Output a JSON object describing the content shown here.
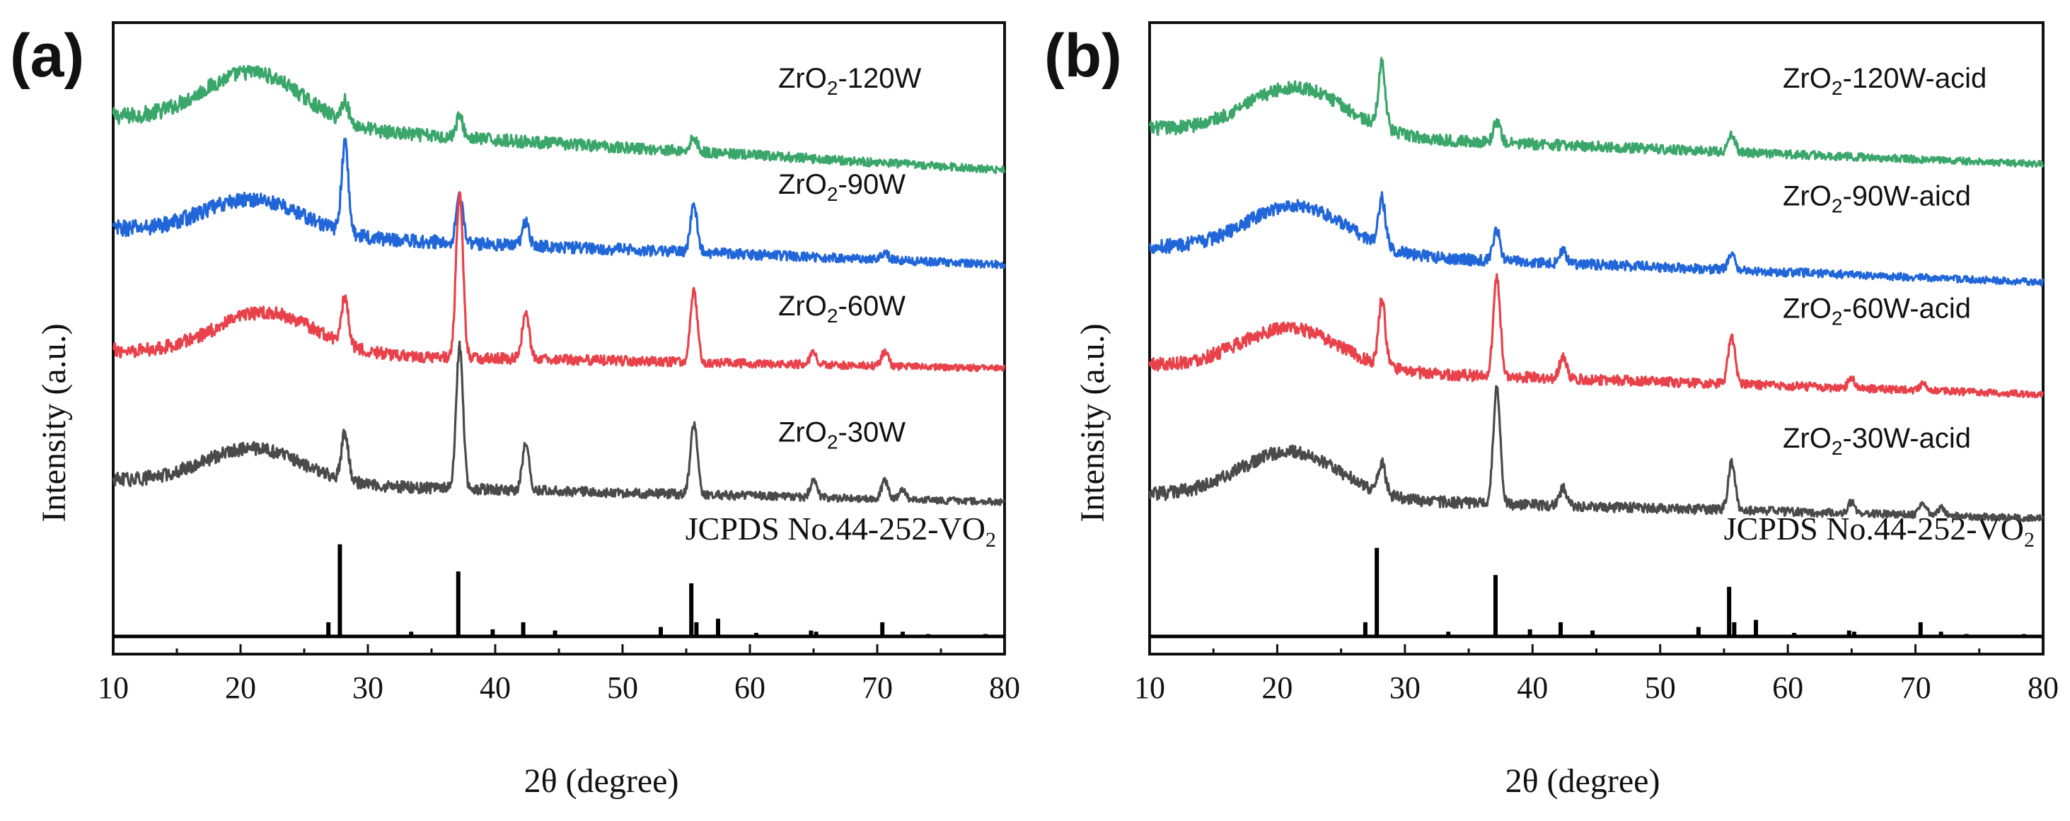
{
  "chart_data": [
    {
      "type": "line",
      "panel": "(a)",
      "xlabel": "2θ (degree)",
      "ylabel": "Intensity (a.u.)",
      "xlim": [
        10,
        80
      ],
      "xticks": [
        10,
        20,
        30,
        40,
        50,
        60,
        70,
        80
      ],
      "grid": false,
      "series": [
        {
          "name": "ZrO2-120W",
          "label_main": "ZrO",
          "label_sub": "2",
          "label_tail": "-120W",
          "color": "#3aa66a",
          "baseline": 2.3,
          "slope": -0.45,
          "hump_height": 0.45,
          "hump_center": 21,
          "noise": 0.07,
          "peaks": [
            [
              28.2,
              0.18
            ],
            [
              37.2,
              0.18
            ],
            [
              55.6,
              0.12
            ]
          ]
        },
        {
          "name": "ZrO2-90W",
          "label_main": "ZrO",
          "label_sub": "2",
          "label_tail": "-90W",
          "color": "#2166d9",
          "baseline": 1.35,
          "slope": -0.3,
          "hump_height": 0.3,
          "hump_center": 21,
          "noise": 0.07,
          "peaks": [
            [
              28.2,
              0.75
            ],
            [
              37.2,
              0.4
            ],
            [
              42.4,
              0.2
            ],
            [
              55.6,
              0.4
            ],
            [
              70.6,
              0.06
            ]
          ]
        },
        {
          "name": "ZrO2-60W",
          "label_main": "ZrO",
          "label_sub": "2",
          "label_tail": "-60W",
          "color": "#e8414a",
          "baseline": 0.32,
          "slope": -0.15,
          "hump_height": 0.35,
          "hump_center": 22,
          "noise": 0.06,
          "peaks": [
            [
              28.2,
              0.4
            ],
            [
              37.2,
              1.4
            ],
            [
              42.4,
              0.4
            ],
            [
              55.6,
              0.6
            ],
            [
              65.0,
              0.1
            ],
            [
              70.6,
              0.12
            ]
          ]
        },
        {
          "name": "ZrO2-30W",
          "label_main": "ZrO",
          "label_sub": "2",
          "label_tail": "-30W",
          "color": "#4a4a4a",
          "baseline": -0.78,
          "slope": -0.18,
          "hump_height": 0.3,
          "hump_center": 21,
          "noise": 0.06,
          "peaks": [
            [
              28.2,
              0.4
            ],
            [
              37.2,
              1.2
            ],
            [
              42.4,
              0.4
            ],
            [
              55.6,
              0.6
            ],
            [
              65.0,
              0.13
            ],
            [
              70.6,
              0.15
            ],
            [
              72.0,
              0.07
            ]
          ]
        }
      ],
      "reference": {
        "name": "JCPDS No.44-252-VO2",
        "label_main": "JCPDS No.44-252-VO",
        "label_sub": "2",
        "color": "#000000",
        "baseline": -2.1,
        "lines": [
          [
            26.9,
            0.12
          ],
          [
            27.8,
            0.78
          ],
          [
            33.4,
            0.04
          ],
          [
            37.1,
            0.55
          ],
          [
            39.8,
            0.06
          ],
          [
            42.2,
            0.12
          ],
          [
            44.7,
            0.05
          ],
          [
            53.0,
            0.08
          ],
          [
            55.4,
            0.45
          ],
          [
            55.8,
            0.12
          ],
          [
            57.5,
            0.15
          ],
          [
            60.5,
            0.03
          ],
          [
            64.8,
            0.05
          ],
          [
            65.2,
            0.04
          ],
          [
            70.4,
            0.12
          ],
          [
            72.0,
            0.04
          ],
          [
            74.0,
            0.02
          ],
          [
            78.5,
            0.02
          ]
        ]
      }
    },
    {
      "type": "line",
      "panel": "(b)",
      "xlabel": "2θ (degree)",
      "ylabel": "Intensity (a.u.)",
      "xlim": [
        10,
        80
      ],
      "xticks": [
        10,
        20,
        30,
        40,
        50,
        60,
        70,
        80
      ],
      "grid": false,
      "series": [
        {
          "name": "ZrO2-120W-acid",
          "label_main": "ZrO",
          "label_sub": "2",
          "label_tail": "-120W-acid",
          "color": "#3aa66a",
          "baseline": 2.2,
          "slope": -0.3,
          "hump_height": 0.4,
          "hump_center": 21.5,
          "noise": 0.06,
          "peaks": [
            [
              28.2,
              0.55
            ],
            [
              37.2,
              0.18
            ],
            [
              55.6,
              0.14
            ]
          ]
        },
        {
          "name": "ZrO2-90W-aicd",
          "label_main": "ZrO",
          "label_sub": "2",
          "label_tail": "-90W-aicd",
          "color": "#2166d9",
          "baseline": 1.2,
          "slope": -0.3,
          "hump_height": 0.4,
          "hump_center": 21.5,
          "noise": 0.06,
          "peaks": [
            [
              28.2,
              0.4
            ],
            [
              37.2,
              0.25
            ],
            [
              42.4,
              0.1
            ],
            [
              55.6,
              0.14
            ]
          ]
        },
        {
          "name": "ZrO2-60W-acid",
          "label_main": "ZrO",
          "label_sub": "2",
          "label_tail": "-60W-acid",
          "color": "#e8414a",
          "baseline": 0.2,
          "slope": -0.25,
          "hump_height": 0.35,
          "hump_center": 21,
          "noise": 0.06,
          "peaks": [
            [
              28.2,
              0.55
            ],
            [
              37.2,
              0.85
            ],
            [
              42.4,
              0.2
            ],
            [
              55.6,
              0.4
            ],
            [
              65.0,
              0.08
            ],
            [
              70.6,
              0.06
            ]
          ]
        },
        {
          "name": "ZrO2-30W-acid",
          "label_main": "ZrO",
          "label_sub": "2",
          "label_tail": "-30W-acid",
          "color": "#4a4a4a",
          "baseline": -0.9,
          "slope": -0.2,
          "hump_height": 0.4,
          "hump_center": 21,
          "noise": 0.06,
          "peaks": [
            [
              28.2,
              0.25
            ],
            [
              37.2,
              1.0
            ],
            [
              42.4,
              0.15
            ],
            [
              55.6,
              0.4
            ],
            [
              65.0,
              0.1
            ],
            [
              70.6,
              0.1
            ],
            [
              72.0,
              0.07
            ]
          ]
        }
      ],
      "reference": {
        "name": "JCPDS No.44-252-VO2",
        "label_main": "JCPDS No.44-252-VO",
        "label_sub": "2",
        "color": "#000000",
        "baseline": -2.1,
        "lines": [
          [
            26.9,
            0.12
          ],
          [
            27.8,
            0.75
          ],
          [
            33.4,
            0.04
          ],
          [
            37.1,
            0.52
          ],
          [
            39.8,
            0.06
          ],
          [
            42.2,
            0.12
          ],
          [
            44.7,
            0.05
          ],
          [
            53.0,
            0.08
          ],
          [
            55.4,
            0.42
          ],
          [
            55.8,
            0.12
          ],
          [
            57.5,
            0.14
          ],
          [
            60.5,
            0.03
          ],
          [
            64.8,
            0.05
          ],
          [
            65.2,
            0.04
          ],
          [
            70.4,
            0.12
          ],
          [
            72.0,
            0.04
          ],
          [
            74.0,
            0.02
          ],
          [
            78.5,
            0.02
          ]
        ]
      }
    }
  ]
}
